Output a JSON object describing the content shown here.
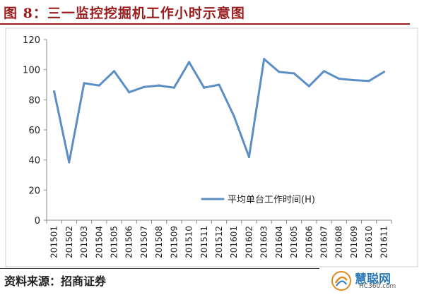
{
  "figure_title": "图 8：三一监控挖掘机工作小时示意图",
  "source_note": "资料来源：招商证券",
  "watermark": {
    "name": "慧聪网",
    "domain": "HC360.com"
  },
  "colors": {
    "accent": "#9b1c1c",
    "series": "#5b8ec4"
  },
  "chart_data": {
    "type": "line",
    "x": [
      "201501",
      "201502",
      "201503",
      "201504",
      "201505",
      "201506",
      "201507",
      "201508",
      "201509",
      "201510",
      "201511",
      "201512",
      "201601",
      "201602",
      "201603",
      "201604",
      "201605",
      "201606",
      "201607",
      "201608",
      "201609",
      "201610",
      "201611"
    ],
    "series": [
      {
        "name": "平均单台工作时间(H)",
        "values": [
          85.5,
          38.5,
          91,
          89.5,
          99,
          85,
          88.5,
          89.5,
          88,
          105,
          88,
          90,
          69,
          42,
          107,
          98.5,
          97.5,
          89,
          99,
          94,
          93,
          92.5,
          98.5
        ]
      }
    ],
    "yticks": [
      "0",
      "20",
      "40",
      "60",
      "80",
      "100",
      "120"
    ],
    "ylim": [
      0,
      120
    ],
    "grid": false,
    "legend": "inside-bottom-right"
  }
}
